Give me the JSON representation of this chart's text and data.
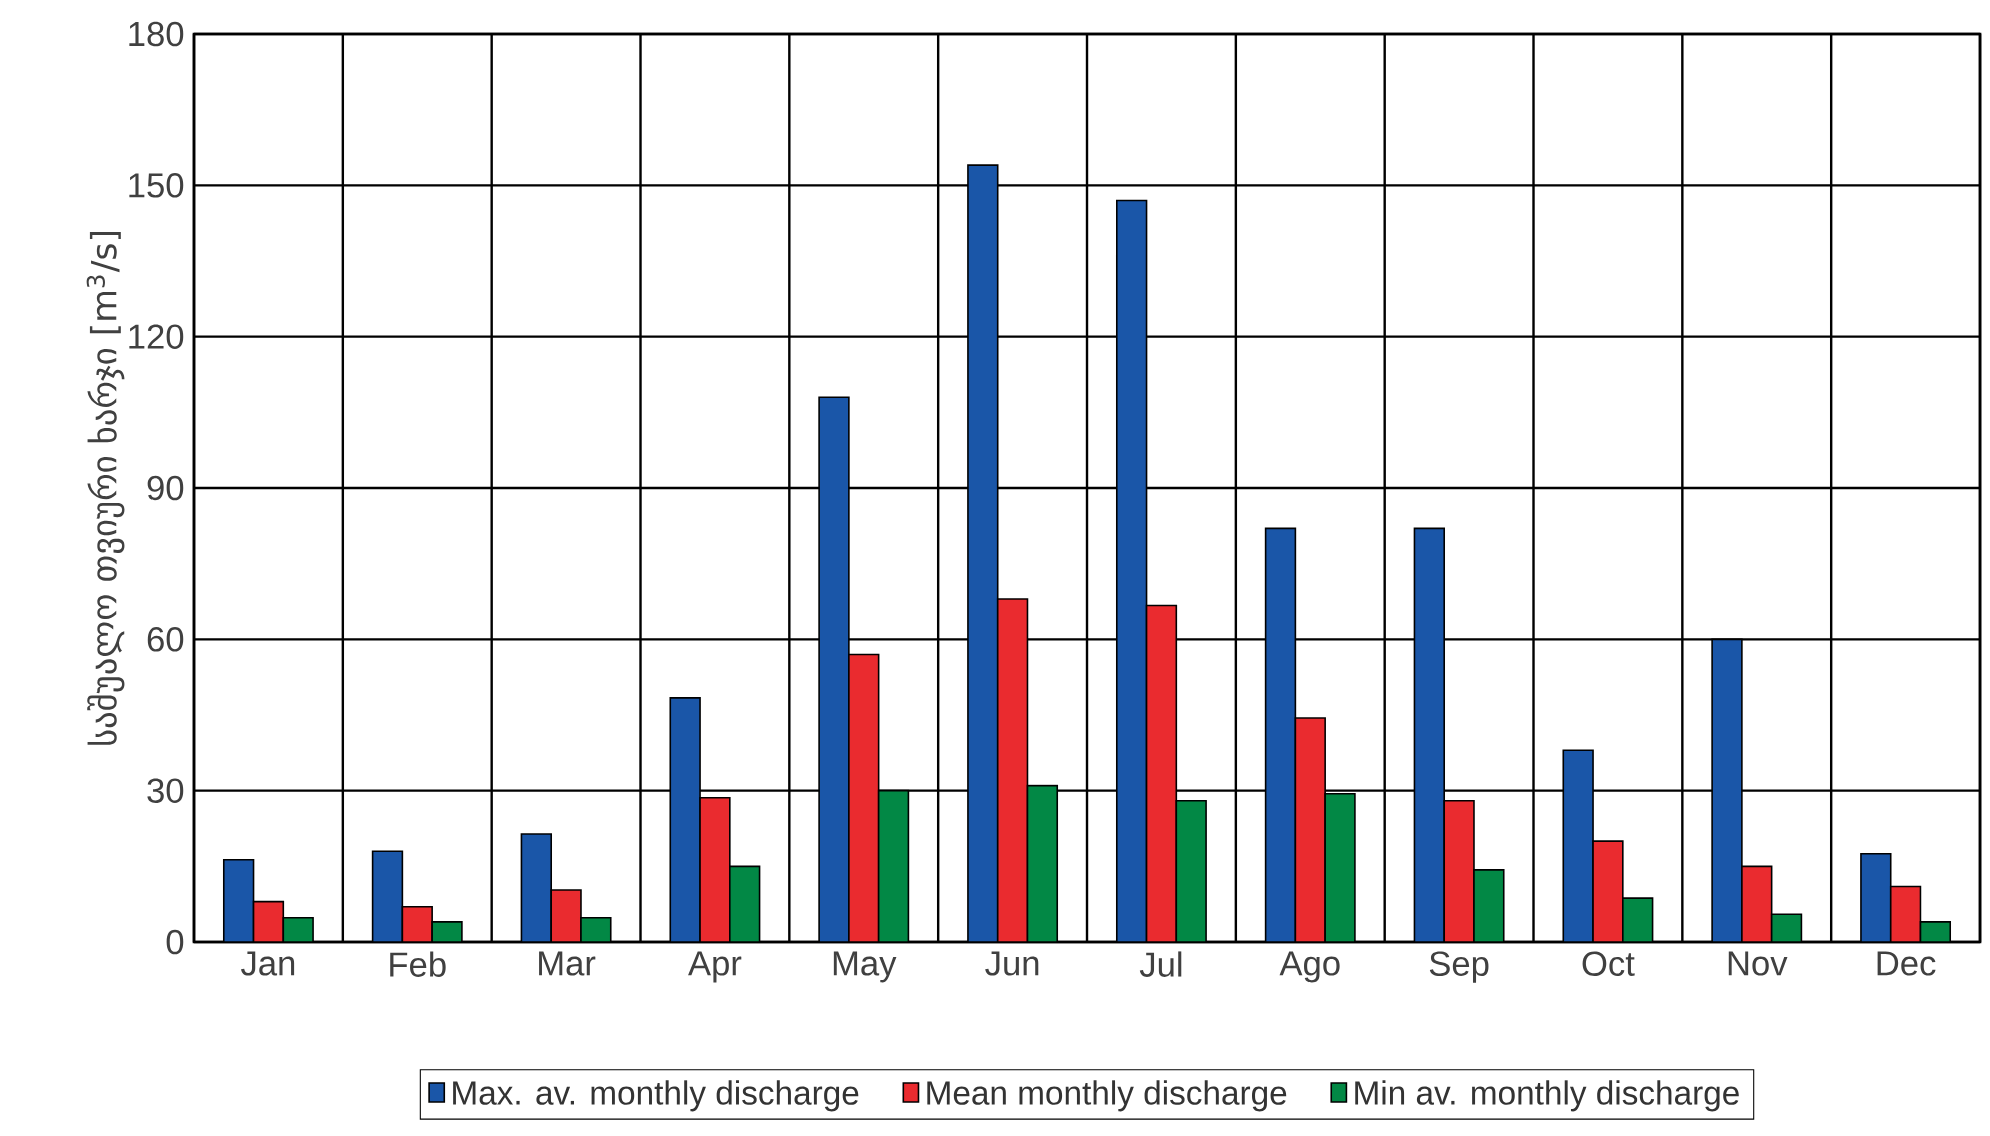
{
  "chart_data": {
    "type": "bar",
    "ylabel": "საშუალო თვიური ხარჯი [m$^{3}$/s]",
    "categories": [
      "Jan",
      "Feb",
      "Mar",
      "Apr",
      "May",
      "Jun",
      "Jul",
      "Ago",
      "Sep",
      "Oct",
      "Nov",
      "Dec"
    ],
    "series": [
      {
        "name": "Max. av. monthly discharge",
        "color": "#1a56a8",
        "values": [
          16.3,
          18,
          21.4,
          48.4,
          108,
          154,
          147,
          82,
          82,
          38,
          60,
          17.5
        ]
      },
      {
        "name": "Mean monthly discharge",
        "color": "#ea2b2f",
        "values": [
          8,
          7,
          10.3,
          28.6,
          57,
          68,
          66.7,
          44.4,
          28,
          20,
          15,
          11
        ]
      },
      {
        "name": "Min av. monthly discharge",
        "color": "#028845",
        "values": [
          4.8,
          4,
          4.8,
          15,
          30,
          31,
          28,
          29.4,
          14.3,
          8.7,
          5.5,
          4
        ]
      }
    ],
    "ylim": [
      0,
      180
    ],
    "yticks": [
      0,
      30,
      60,
      90,
      120,
      150,
      180
    ],
    "grid": true,
    "legend": "bottom"
  }
}
